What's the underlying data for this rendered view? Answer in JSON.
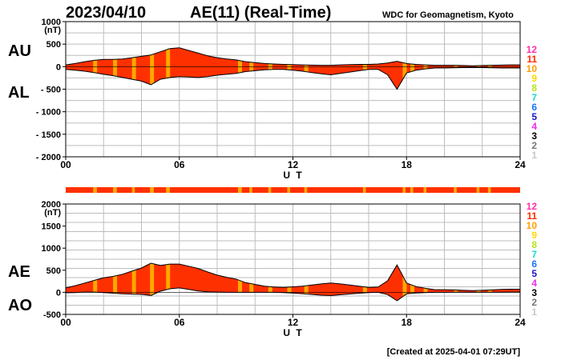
{
  "header": {
    "date": "2023/04/10",
    "title": "AE(11) (Real-Time)",
    "source": "WDC for Geomagnetism, Kyoto"
  },
  "footer": {
    "created": "[Created at 2025-04-01 07:29UT]"
  },
  "index_scale": {
    "labels": [
      "12",
      "11",
      "10",
      "9",
      "8",
      "7",
      "6",
      "5",
      "4",
      "3",
      "2",
      "1"
    ],
    "colors": [
      "#ff2fae",
      "#ff2a00",
      "#ff9e00",
      "#ffd700",
      "#b5e51d",
      "#19d8d0",
      "#1975ff",
      "#1a16c8",
      "#ef2fef",
      "#000000",
      "#777777",
      "#c8c8c8"
    ]
  },
  "colors": {
    "fill_main": "#ff3000",
    "fill_alt": "#ffa800",
    "outline": "#000000",
    "grid": "#bdbdbd"
  },
  "chart_data": [
    {
      "type": "area",
      "panel": "AU/AL",
      "left_labels": [
        "AU",
        "AL"
      ],
      "y_unit": "(nT)",
      "ylim": [
        -2000,
        1000
      ],
      "ytick_labels": [
        "1000",
        "500",
        "0",
        "- 500",
        "- 1000",
        "- 1500",
        "- 2000"
      ],
      "ytick_values": [
        1000,
        500,
        0,
        -500,
        -1000,
        -1500,
        -2000
      ],
      "xlim": [
        0,
        24
      ],
      "xtick_labels": [
        "00",
        "06",
        "12",
        "18",
        "24"
      ],
      "xtick_values": [
        0,
        6,
        12,
        18,
        24
      ],
      "xlabel": "U T",
      "series": [
        {
          "name": "AU",
          "x": [
            0,
            0.5,
            1,
            1.5,
            2,
            2.5,
            3,
            3.5,
            4,
            4.5,
            5,
            5.5,
            6,
            6.5,
            7,
            7.5,
            8,
            8.5,
            9,
            9.5,
            10,
            10.5,
            11,
            11.5,
            12,
            12.5,
            13,
            13.5,
            14,
            14.5,
            15,
            15.5,
            16,
            16.5,
            17,
            17.5,
            18,
            18.5,
            19,
            19.5,
            20,
            20.5,
            21,
            21.5,
            22,
            22.5,
            23,
            23.5,
            24
          ],
          "values": [
            40,
            70,
            110,
            140,
            160,
            160,
            170,
            200,
            230,
            260,
            330,
            400,
            420,
            360,
            300,
            240,
            200,
            170,
            150,
            110,
            90,
            70,
            60,
            50,
            45,
            40,
            35,
            30,
            30,
            40,
            45,
            50,
            50,
            60,
            80,
            120,
            70,
            50,
            40,
            30,
            30,
            30,
            25,
            20,
            25,
            30,
            35,
            40,
            40
          ]
        },
        {
          "name": "AL",
          "x": [
            0,
            0.5,
            1,
            1.5,
            2,
            2.5,
            3,
            3.5,
            4,
            4.5,
            5,
            5.5,
            6,
            6.5,
            7,
            7.5,
            8,
            8.5,
            9,
            9.5,
            10,
            10.5,
            11,
            11.5,
            12,
            12.5,
            13,
            13.5,
            14,
            14.5,
            15,
            15.5,
            16,
            16.5,
            17,
            17.5,
            18,
            18.5,
            19,
            19.5,
            20,
            20.5,
            21,
            21.5,
            22,
            22.5,
            23,
            23.5,
            24
          ],
          "values": [
            -60,
            -80,
            -100,
            -130,
            -170,
            -200,
            -240,
            -280,
            -320,
            -400,
            -280,
            -240,
            -220,
            -230,
            -240,
            -220,
            -190,
            -170,
            -150,
            -110,
            -90,
            -70,
            -60,
            -60,
            -80,
            -100,
            -130,
            -160,
            -180,
            -150,
            -120,
            -90,
            -60,
            -60,
            -180,
            -500,
            -140,
            -80,
            -50,
            -30,
            -30,
            -25,
            -20,
            -20,
            -20,
            -25,
            -30,
            -30,
            -30
          ]
        }
      ]
    },
    {
      "type": "area",
      "panel": "AE/AO",
      "left_labels": [
        "AE",
        "AO"
      ],
      "y_unit": "(nT)",
      "ylim": [
        -500,
        2000
      ],
      "ytick_labels": [
        "2000",
        "1500",
        "1000",
        "500",
        "0",
        "-500"
      ],
      "ytick_values": [
        2000,
        1500,
        1000,
        500,
        0,
        -500
      ],
      "xlim": [
        0,
        24
      ],
      "xtick_labels": [
        "00",
        "06",
        "12",
        "18",
        "24"
      ],
      "xtick_values": [
        0,
        6,
        12,
        18,
        24
      ],
      "xlabel": "U T",
      "series": [
        {
          "name": "AE",
          "x": [
            0,
            0.5,
            1,
            1.5,
            2,
            2.5,
            3,
            3.5,
            4,
            4.5,
            5,
            5.5,
            6,
            6.5,
            7,
            7.5,
            8,
            8.5,
            9,
            9.5,
            10,
            10.5,
            11,
            11.5,
            12,
            12.5,
            13,
            13.5,
            14,
            14.5,
            15,
            15.5,
            16,
            16.5,
            17,
            17.5,
            18,
            18.5,
            19,
            19.5,
            20,
            20.5,
            21,
            21.5,
            22,
            22.5,
            23,
            23.5,
            24
          ],
          "values": [
            100,
            150,
            210,
            270,
            330,
            360,
            410,
            480,
            550,
            660,
            610,
            640,
            640,
            590,
            540,
            460,
            390,
            340,
            300,
            220,
            180,
            140,
            120,
            110,
            125,
            140,
            165,
            190,
            210,
            190,
            165,
            140,
            110,
            120,
            260,
            620,
            210,
            130,
            90,
            60,
            60,
            55,
            45,
            40,
            45,
            55,
            65,
            70,
            70
          ]
        },
        {
          "name": "AO",
          "x": [
            0,
            0.5,
            1,
            1.5,
            2,
            2.5,
            3,
            3.5,
            4,
            4.5,
            5,
            5.5,
            6,
            6.5,
            7,
            7.5,
            8,
            8.5,
            9,
            9.5,
            10,
            10.5,
            11,
            11.5,
            12,
            12.5,
            13,
            13.5,
            14,
            14.5,
            15,
            15.5,
            16,
            16.5,
            17,
            17.5,
            18,
            18.5,
            19,
            19.5,
            20,
            20.5,
            21,
            21.5,
            22,
            22.5,
            23,
            23.5,
            24
          ],
          "values": [
            -10,
            -5,
            5,
            5,
            -5,
            -20,
            -35,
            -40,
            -45,
            -70,
            25,
            80,
            100,
            65,
            30,
            10,
            5,
            0,
            0,
            0,
            0,
            0,
            0,
            -5,
            -18,
            -30,
            -48,
            -65,
            -75,
            -55,
            -38,
            -20,
            -5,
            0,
            -50,
            -190,
            -35,
            -15,
            -5,
            0,
            0,
            3,
            3,
            0,
            3,
            3,
            3,
            5,
            5
          ]
        }
      ]
    }
  ],
  "activity_bar": {
    "base_color": "#ff3000",
    "segments": [
      {
        "start": 0,
        "end": 24,
        "color": "#ff3000"
      },
      {
        "start": 1.45,
        "end": 1.65,
        "color": "#ffa800"
      },
      {
        "start": 2.5,
        "end": 2.7,
        "color": "#ffa800"
      },
      {
        "start": 3.5,
        "end": 3.65,
        "color": "#ffa800"
      },
      {
        "start": 4.45,
        "end": 4.65,
        "color": "#ffa800"
      },
      {
        "start": 5.3,
        "end": 5.5,
        "color": "#ffa800"
      },
      {
        "start": 9.1,
        "end": 9.3,
        "color": "#ffa800"
      },
      {
        "start": 9.7,
        "end": 9.85,
        "color": "#ffa800"
      },
      {
        "start": 10.7,
        "end": 10.85,
        "color": "#ffa800"
      },
      {
        "start": 11.7,
        "end": 11.85,
        "color": "#ffa800"
      },
      {
        "start": 12.6,
        "end": 12.75,
        "color": "#ffa800"
      },
      {
        "start": 15.7,
        "end": 15.85,
        "color": "#ffa800"
      },
      {
        "start": 17.8,
        "end": 17.95,
        "color": "#ffa800"
      },
      {
        "start": 18.2,
        "end": 18.35,
        "color": "#ffa800"
      },
      {
        "start": 18.9,
        "end": 19.05,
        "color": "#ffa800"
      },
      {
        "start": 20.5,
        "end": 20.65,
        "color": "#ffa800"
      },
      {
        "start": 21.7,
        "end": 21.85,
        "color": "#ffa800"
      },
      {
        "start": 22.3,
        "end": 22.45,
        "color": "#ffa800"
      }
    ]
  }
}
